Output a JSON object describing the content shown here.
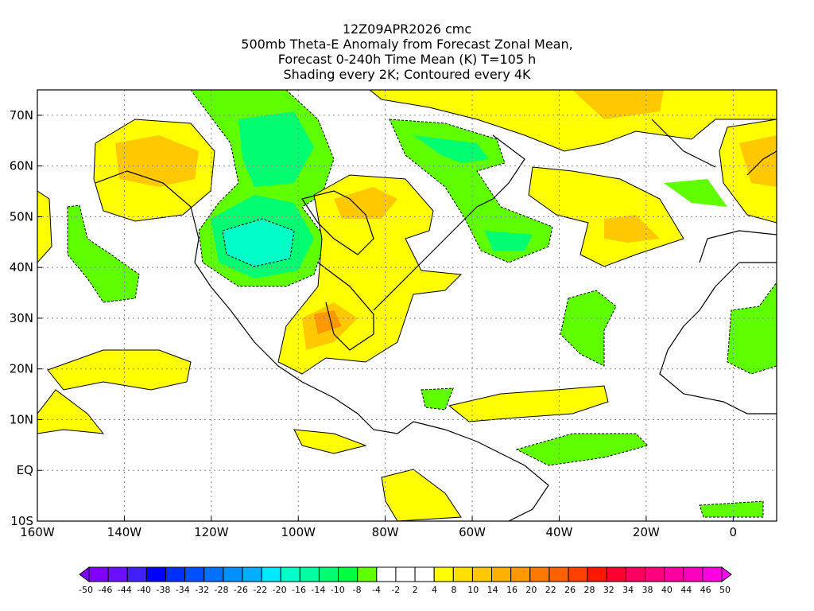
{
  "title": {
    "line1": "12Z09APR2026 cmc",
    "line2": "500mb Theta-E Anomaly from Forecast Zonal Mean,",
    "line3": "Forecast 0-240h Time Mean (K) T=105 h",
    "line4": "Shading every 2K; Contoured every 4K"
  },
  "chart_data": {
    "type": "heatmap",
    "variable": "500mb Theta-E Anomaly (K)",
    "lon_range": [
      -160,
      10
    ],
    "lat_range": [
      -10,
      75
    ],
    "x_ticks": [
      "160W",
      "140W",
      "120W",
      "100W",
      "80W",
      "60W",
      "40W",
      "20W",
      "0"
    ],
    "x_tick_values": [
      -160,
      -140,
      -120,
      -100,
      -80,
      -60,
      -40,
      -20,
      0
    ],
    "y_ticks": [
      "10S",
      "EQ",
      "10N",
      "20N",
      "30N",
      "40N",
      "50N",
      "60N",
      "70N"
    ],
    "y_tick_values": [
      -10,
      0,
      10,
      20,
      30,
      40,
      50,
      60,
      70
    ],
    "grid": true,
    "colorbar": {
      "labels": [
        "-50",
        "-46",
        "-44",
        "-40",
        "-38",
        "-34",
        "-32",
        "-28",
        "-26",
        "-22",
        "-20",
        "-16",
        "-14",
        "-10",
        "-8",
        "-4",
        "-2",
        "2",
        "4",
        "8",
        "10",
        "14",
        "16",
        "20",
        "22",
        "26",
        "28",
        "32",
        "34",
        "38",
        "40",
        "44",
        "46",
        "50"
      ],
      "colors": [
        "#7f00ff",
        "#6a10ff",
        "#4020ff",
        "#0000ff",
        "#0030ff",
        "#0050ff",
        "#0070ff",
        "#0090ff",
        "#00b0ff",
        "#00e8ff",
        "#00ffc8",
        "#00ffa0",
        "#00ff70",
        "#00ff40",
        "#60ff00",
        "#ffffff",
        "#ffffff",
        "#ffffff",
        "#ffff00",
        "#ffe000",
        "#ffc800",
        "#ffb000",
        "#ff9800",
        "#ff7800",
        "#ff6000",
        "#ff4000",
        "#ff1800",
        "#ff0030",
        "#ff0060",
        "#ff0080",
        "#ff00a0",
        "#ff00c0",
        "#ff00e0"
      ],
      "under_color": "#8000ff",
      "over_color": "#ff00ff"
    }
  }
}
